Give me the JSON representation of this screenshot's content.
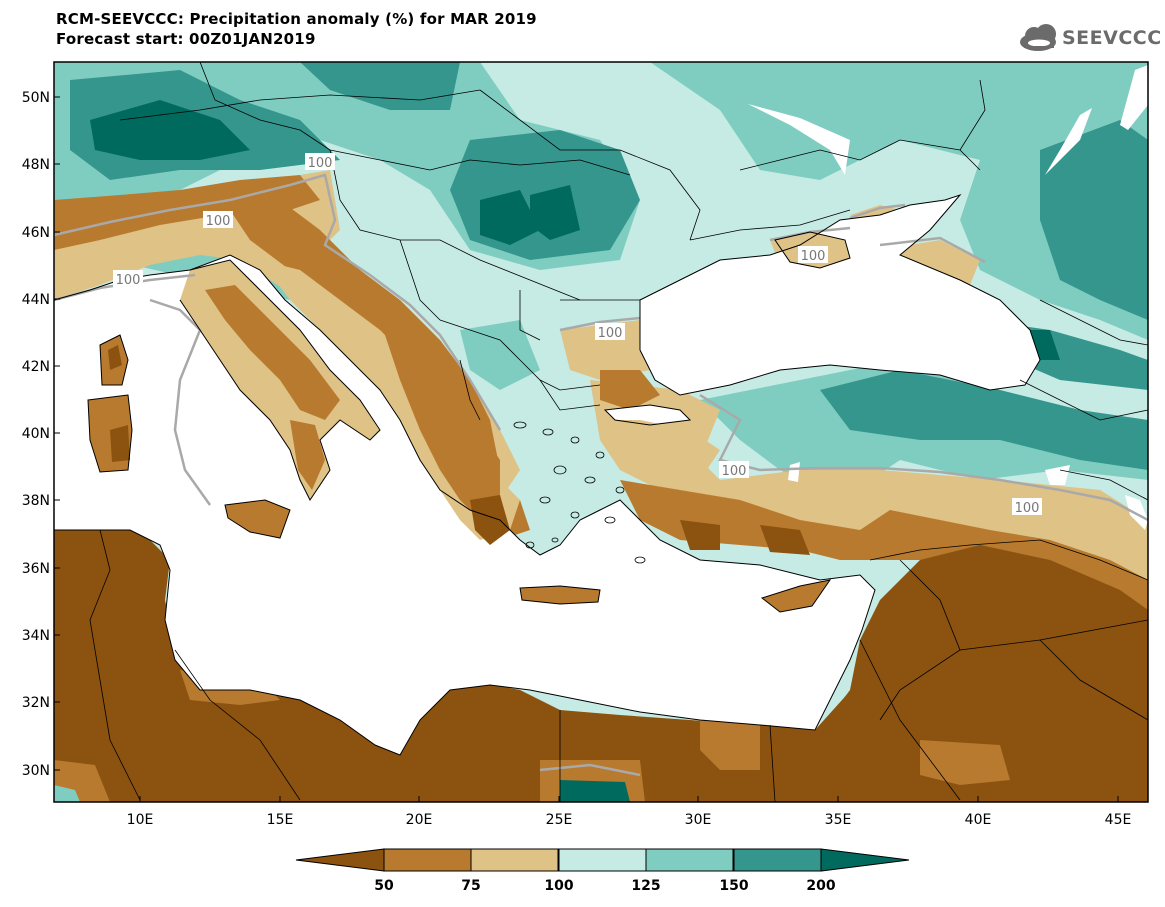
{
  "header": {
    "title": "RCM-SEEVCCC: Precipitation anomaly (%) for MAR 2019",
    "subtitle": "Forecast start: 00Z01JAN2019",
    "logo_text": "SEEVCCC",
    "logo_icon": "cloud-icon"
  },
  "map": {
    "lat_labels": [
      "50N",
      "48N",
      "46N",
      "44N",
      "42N",
      "40N",
      "38N",
      "36N",
      "34N",
      "32N",
      "30N"
    ],
    "lon_labels": [
      "10E",
      "15E",
      "20E",
      "25E",
      "30E",
      "35E",
      "40E",
      "45E"
    ],
    "contour_label": "100",
    "contour_label_count": 7
  },
  "colorbar": {
    "labels": [
      "50",
      "75",
      "100",
      "125",
      "150",
      "200"
    ],
    "colors": [
      "#8c5210",
      "#b87a2e",
      "#dfc285",
      "#c5ebe4",
      "#7fcdc0",
      "#35968e",
      "#016a5e"
    ]
  },
  "colors": {
    "land_dry": "#8c5210",
    "sea": "#ffffff",
    "contour": "#a9a9a9"
  }
}
